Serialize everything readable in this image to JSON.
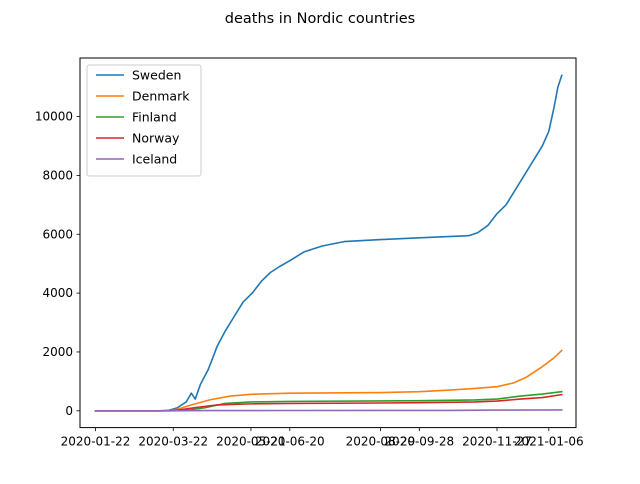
{
  "chart_data": {
    "type": "line",
    "title": "deaths in  Nordic countries",
    "xlabel": "",
    "ylabel": "",
    "x_ticks": [
      "2020-01-22",
      "2020-03-22",
      "2020-05-21",
      "2020-06-20",
      "2020-08-29",
      "2020-09-28",
      "2020-11-27",
      "2021-01-06"
    ],
    "y_ticks": [
      0,
      2000,
      4000,
      6000,
      8000,
      10000
    ],
    "xlim": [
      "2020-01-10",
      "2021-01-27"
    ],
    "ylim": [
      -571,
      11990
    ],
    "grid": false,
    "legend_position": "top-left",
    "series": [
      {
        "name": "Sweden",
        "color": "#1f77b4",
        "points": [
          [
            "2020-01-22",
            0
          ],
          [
            "2020-03-10",
            0
          ],
          [
            "2020-03-18",
            10
          ],
          [
            "2020-03-25",
            100
          ],
          [
            "2020-04-01",
            300
          ],
          [
            "2020-04-05",
            600
          ],
          [
            "2020-04-08",
            400
          ],
          [
            "2020-04-12",
            900
          ],
          [
            "2020-04-18",
            1400
          ],
          [
            "2020-04-25",
            2200
          ],
          [
            "2020-05-01",
            2700
          ],
          [
            "2020-05-08",
            3200
          ],
          [
            "2020-05-15",
            3700
          ],
          [
            "2020-05-22",
            4000
          ],
          [
            "2020-05-29",
            4400
          ],
          [
            "2020-06-05",
            4700
          ],
          [
            "2020-06-12",
            4900
          ],
          [
            "2020-06-20",
            5100
          ],
          [
            "2020-07-01",
            5400
          ],
          [
            "2020-07-15",
            5600
          ],
          [
            "2020-08-01",
            5750
          ],
          [
            "2020-08-29",
            5820
          ],
          [
            "2020-09-28",
            5880
          ],
          [
            "2020-10-20",
            5920
          ],
          [
            "2020-11-05",
            5950
          ],
          [
            "2020-11-12",
            6050
          ],
          [
            "2020-11-20",
            6300
          ],
          [
            "2020-11-27",
            6700
          ],
          [
            "2020-12-04",
            7000
          ],
          [
            "2020-12-11",
            7500
          ],
          [
            "2020-12-18",
            8000
          ],
          [
            "2020-12-25",
            8500
          ],
          [
            "2021-01-01",
            9000
          ],
          [
            "2021-01-06",
            9500
          ],
          [
            "2021-01-10",
            10300
          ],
          [
            "2021-01-13",
            11000
          ],
          [
            "2021-01-16",
            11400
          ]
        ]
      },
      {
        "name": "Denmark",
        "color": "#ff7f0e",
        "points": [
          [
            "2020-01-22",
            0
          ],
          [
            "2020-03-15",
            0
          ],
          [
            "2020-03-25",
            50
          ],
          [
            "2020-04-05",
            200
          ],
          [
            "2020-04-20",
            380
          ],
          [
            "2020-05-05",
            500
          ],
          [
            "2020-05-21",
            560
          ],
          [
            "2020-06-20",
            600
          ],
          [
            "2020-08-29",
            620
          ],
          [
            "2020-09-28",
            650
          ],
          [
            "2020-10-20",
            700
          ],
          [
            "2020-11-10",
            760
          ],
          [
            "2020-11-27",
            820
          ],
          [
            "2020-12-10",
            950
          ],
          [
            "2020-12-20",
            1150
          ],
          [
            "2021-01-01",
            1500
          ],
          [
            "2021-01-10",
            1800
          ],
          [
            "2021-01-16",
            2050
          ]
        ]
      },
      {
        "name": "Finland",
        "color": "#2ca02c",
        "points": [
          [
            "2020-01-22",
            0
          ],
          [
            "2020-03-20",
            0
          ],
          [
            "2020-04-01",
            20
          ],
          [
            "2020-04-15",
            100
          ],
          [
            "2020-05-01",
            250
          ],
          [
            "2020-05-21",
            300
          ],
          [
            "2020-06-20",
            320
          ],
          [
            "2020-08-29",
            335
          ],
          [
            "2020-09-28",
            345
          ],
          [
            "2020-11-10",
            370
          ],
          [
            "2020-11-27",
            400
          ],
          [
            "2020-12-15",
            500
          ],
          [
            "2021-01-01",
            570
          ],
          [
            "2021-01-16",
            650
          ]
        ]
      },
      {
        "name": "Norway",
        "color": "#d62728",
        "points": [
          [
            "2020-01-22",
            0
          ],
          [
            "2020-03-12",
            0
          ],
          [
            "2020-03-25",
            20
          ],
          [
            "2020-04-10",
            120
          ],
          [
            "2020-04-25",
            200
          ],
          [
            "2020-05-21",
            235
          ],
          [
            "2020-06-20",
            250
          ],
          [
            "2020-08-29",
            265
          ],
          [
            "2020-09-28",
            275
          ],
          [
            "2020-11-10",
            300
          ],
          [
            "2020-11-27",
            330
          ],
          [
            "2020-12-15",
            400
          ],
          [
            "2021-01-01",
            450
          ],
          [
            "2021-01-16",
            550
          ]
        ]
      },
      {
        "name": "Iceland",
        "color": "#9467bd",
        "points": [
          [
            "2020-01-22",
            0
          ],
          [
            "2020-03-20",
            0
          ],
          [
            "2020-04-15",
            8
          ],
          [
            "2020-06-20",
            10
          ],
          [
            "2020-10-20",
            11
          ],
          [
            "2020-11-27",
            26
          ],
          [
            "2021-01-16",
            29
          ]
        ]
      }
    ]
  }
}
